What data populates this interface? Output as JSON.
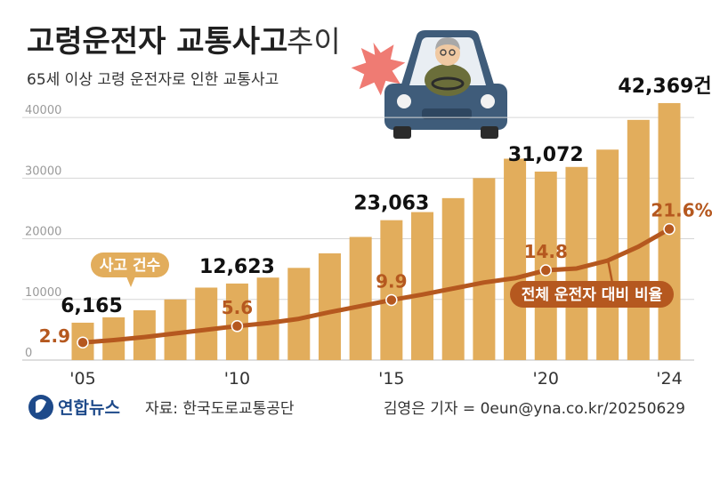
{
  "header": {
    "title": "고령운전자 교통사고",
    "title_suffix": "추이",
    "subtitle": "65세 이상 고령 운전자로 인한 교통사고"
  },
  "chart_data": {
    "type": "bar",
    "categories": [
      "'05",
      "'06",
      "'07",
      "'08",
      "'09",
      "'10",
      "'11",
      "'12",
      "'13",
      "'14",
      "'15",
      "'16",
      "'17",
      "'18",
      "'19",
      "'20",
      "'21",
      "'22",
      "'23",
      "'24"
    ],
    "x_tick_labels": [
      "'05",
      "'10",
      "'15",
      "'20",
      "'24"
    ],
    "y_ticks": [
      0,
      10000,
      20000,
      30000,
      40000
    ],
    "ylim": [
      0,
      45000
    ],
    "grid": true,
    "series": [
      {
        "name": "사고 건수",
        "values": [
          6165,
          7050,
          8210,
          10000,
          11950,
          12623,
          13600,
          15200,
          17600,
          20300,
          23063,
          24400,
          26700,
          30000,
          33200,
          31072,
          31840,
          34700,
          39600,
          42369
        ]
      },
      {
        "name": "전체 운전자 대비 비율",
        "values": [
          2.9,
          3.3,
          3.8,
          4.4,
          5.0,
          5.6,
          6.1,
          6.8,
          7.9,
          8.9,
          9.9,
          10.8,
          11.8,
          12.8,
          13.5,
          14.8,
          15.1,
          16.4,
          18.7,
          21.6
        ],
        "ylim": [
          0,
          45
        ]
      }
    ],
    "bar_labels": [
      {
        "index": 0,
        "text": "6,165"
      },
      {
        "index": 5,
        "text": "12,623"
      },
      {
        "index": 10,
        "text": "23,063"
      },
      {
        "index": 15,
        "text": "31,072"
      },
      {
        "index": 19,
        "text": "42,369건"
      }
    ],
    "ratio_labels": [
      {
        "index": 0,
        "text": "2.9"
      },
      {
        "index": 5,
        "text": "5.6"
      },
      {
        "index": 10,
        "text": "9.9"
      },
      {
        "index": 15,
        "text": "14.8"
      },
      {
        "index": 19,
        "text": "21.6%"
      }
    ],
    "bar_callout": "사고 건수",
    "line_callout": "전체 운전자 대비 비율",
    "colors": {
      "bar": "#e2ad5c",
      "line": "#b5581f",
      "grid": "#d6d6d6"
    }
  },
  "footer": {
    "logo_text": "연합뉴스",
    "source": "자료: 한국도로교통공단",
    "credit": "김영은 기자 = 0eun@yna.co.kr/20250629"
  }
}
